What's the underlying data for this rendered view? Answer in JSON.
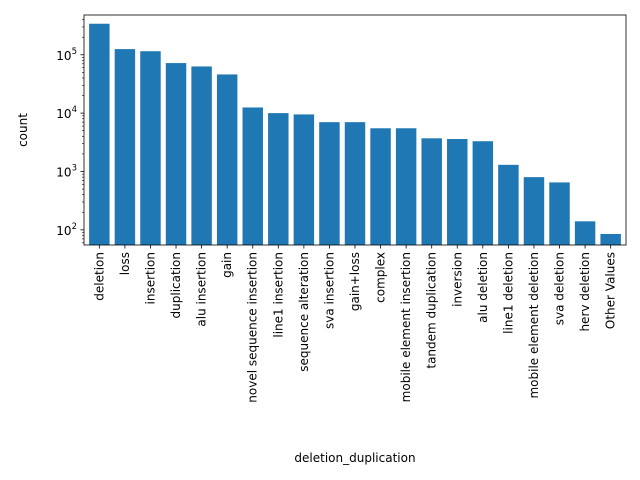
{
  "chart_data": {
    "type": "bar",
    "xlabel": "deletion_duplication",
    "ylabel": "count",
    "yscale": "log",
    "ylim": [
      55,
      480000
    ],
    "y_ticks": [
      {
        "value": 100,
        "label": "10",
        "exp": "2"
      },
      {
        "value": 1000,
        "label": "10",
        "exp": "3"
      },
      {
        "value": 10000,
        "label": "10",
        "exp": "4"
      },
      {
        "value": 100000,
        "label": "10",
        "exp": "5"
      }
    ],
    "grid": false,
    "bar_color": "#1f77b4",
    "categories": [
      "deletion",
      "loss",
      "insertion",
      "duplication",
      "alu insertion",
      "gain",
      "novel sequence insertion",
      "line1 insertion",
      "sequence alteration",
      "sva insertion",
      "gain+loss",
      "complex",
      "mobile element insertion",
      "tandem duplication",
      "inversion",
      "alu deletion",
      "line1 deletion",
      "mobile element deletion",
      "sva deletion",
      "herv deletion",
      "Other Values"
    ],
    "values": [
      340000,
      125000,
      115000,
      72000,
      63000,
      46000,
      12500,
      10000,
      9500,
      7000,
      7000,
      5500,
      5500,
      3700,
      3600,
      3300,
      1300,
      800,
      650,
      140,
      85
    ]
  }
}
